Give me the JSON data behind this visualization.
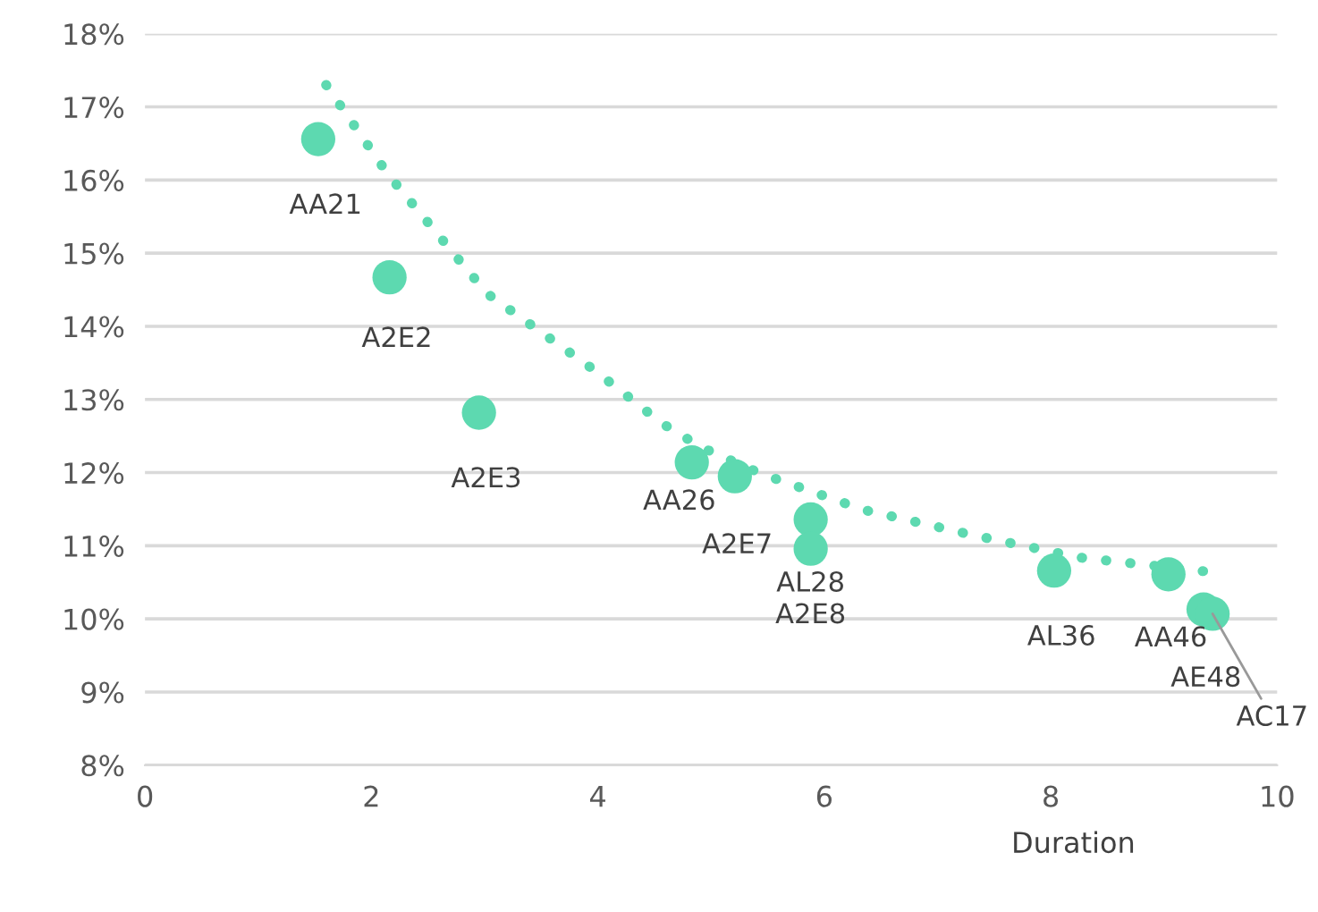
{
  "chart_data": {
    "type": "scatter",
    "xlabel": "Duration",
    "series": [
      {
        "color": "#5dd9b0",
        "marker": "circle",
        "x": [
          1.53,
          2.16,
          2.95,
          4.83,
          5.21,
          5.88,
          5.88,
          8.03,
          9.04,
          9.35,
          9.43
        ],
        "values": [
          16.56,
          14.67,
          12.82,
          12.14,
          11.95,
          11.36,
          10.96,
          10.66,
          10.61,
          10.13,
          10.07
        ]
      },
      {
        "type": "line",
        "color": "#5dd9b0",
        "line_style": "dotted",
        "marker": "none",
        "x": [
          1.6,
          2.15,
          3.02,
          3.97,
          4.57,
          4.91,
          5.45,
          6.35,
          7.3,
          8.25,
          9.42
        ],
        "values": [
          17.3,
          16.07,
          14.45,
          13.4,
          12.67,
          12.35,
          11.98,
          11.49,
          11.15,
          10.84,
          10.64
        ]
      }
    ],
    "annotations": [
      {
        "text": "AA21",
        "x": 1.53,
        "y": 16.56
      },
      {
        "text": "A2E2",
        "x": 2.16,
        "y": 14.67
      },
      {
        "text": "A2E3",
        "x": 2.95,
        "y": 12.82
      },
      {
        "text": "AA26",
        "x": 4.83,
        "y": 12.14
      },
      {
        "text": "A2E7",
        "x": 5.21,
        "y": 11.95
      },
      {
        "text": "AL28",
        "x": 5.88,
        "y": 11.36
      },
      {
        "text": "A2E8",
        "x": 5.88,
        "y": 10.96
      },
      {
        "text": "AL36",
        "x": 8.03,
        "y": 10.66
      },
      {
        "text": "AA46",
        "x": 9.04,
        "y": 10.61
      },
      {
        "text": "AE48",
        "x": 9.35,
        "y": 10.13
      },
      {
        "text": "AC17",
        "x": 9.43,
        "y": 10.07
      }
    ],
    "xlim": [
      0,
      10
    ],
    "xticks": [
      0,
      2,
      4,
      6,
      8,
      10
    ],
    "ylim": [
      8,
      18
    ],
    "yticks": [
      {
        "value": 8,
        "label": "8%"
      },
      {
        "value": 9,
        "label": "9%"
      },
      {
        "value": 10,
        "label": "10%"
      },
      {
        "value": 11,
        "label": "11%"
      },
      {
        "value": 12,
        "label": "12%"
      },
      {
        "value": 13,
        "label": "13%"
      },
      {
        "value": 14,
        "label": "14%"
      },
      {
        "value": 15,
        "label": "15%"
      },
      {
        "value": 16,
        "label": "16%"
      },
      {
        "value": 17,
        "label": "17%"
      },
      {
        "value": 18,
        "label": "18%"
      }
    ],
    "grid": "y",
    "legend": false
  }
}
